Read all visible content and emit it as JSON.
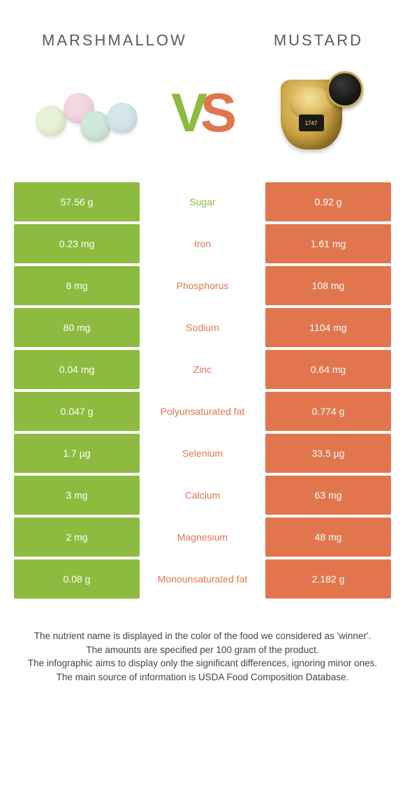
{
  "header": {
    "left_title": "Marshmallow",
    "right_title": "Mustard"
  },
  "vs": {
    "v": "V",
    "s": "S"
  },
  "colors": {
    "left_bar": "#8cbb3f",
    "right_bar": "#e1764e",
    "winner_left_text": "#8cbb3f",
    "winner_right_text": "#e1764e"
  },
  "jar_label": "1747",
  "rows": [
    {
      "left": "57.56 g",
      "name": "Sugar",
      "right": "0.92 g",
      "winner": "left"
    },
    {
      "left": "0.23 mg",
      "name": "Iron",
      "right": "1.61 mg",
      "winner": "right"
    },
    {
      "left": "8 mg",
      "name": "Phosphorus",
      "right": "108 mg",
      "winner": "right"
    },
    {
      "left": "80 mg",
      "name": "Sodium",
      "right": "1104 mg",
      "winner": "right"
    },
    {
      "left": "0.04 mg",
      "name": "Zinc",
      "right": "0.64 mg",
      "winner": "right"
    },
    {
      "left": "0.047 g",
      "name": "Polyunsaturated fat",
      "right": "0.774 g",
      "winner": "right"
    },
    {
      "left": "1.7 µg",
      "name": "Selenium",
      "right": "33.5 µg",
      "winner": "right"
    },
    {
      "left": "3 mg",
      "name": "Calcium",
      "right": "63 mg",
      "winner": "right"
    },
    {
      "left": "2 mg",
      "name": "Magnesium",
      "right": "48 mg",
      "winner": "right"
    },
    {
      "left": "0.08 g",
      "name": "Monounsaturated fat",
      "right": "2.182 g",
      "winner": "right"
    }
  ],
  "footer": {
    "line1": "The nutrient name is displayed in the color of the food we considered as 'winner'.",
    "line2": "The amounts are specified per 100 gram of the product.",
    "line3": "The infographic aims to display only the significant differences, ignoring minor ones.",
    "line4": "The main source of information is USDA Food Composition Database."
  }
}
